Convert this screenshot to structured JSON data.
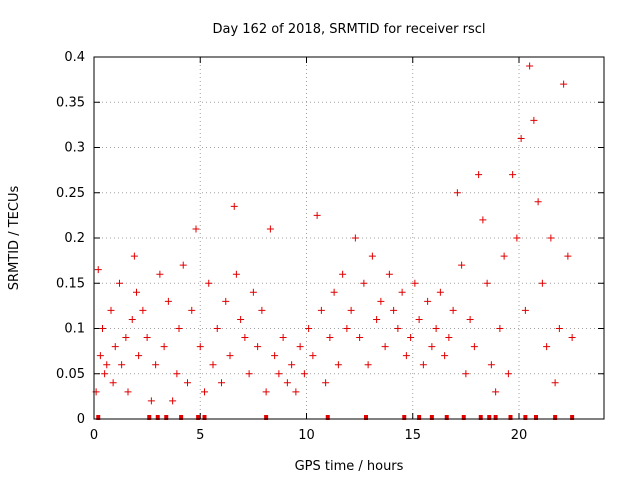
{
  "chart_data": {
    "type": "scatter",
    "title": "Day 162 of 2018, SRMTID for receiver rscl",
    "xlabel": "GPS time / hours",
    "ylabel": "SRMTID / TECUs",
    "xlim": [
      0,
      24
    ],
    "ylim": [
      0,
      0.4
    ],
    "xticks": [
      0,
      5,
      10,
      15,
      20
    ],
    "yticks": [
      0,
      0.05,
      0.1,
      0.15,
      0.2,
      0.25,
      0.3,
      0.35,
      0.4
    ],
    "xtick_labels": [
      "0",
      "5",
      "10",
      "15",
      "20"
    ],
    "ytick_labels": [
      "0",
      "0.05",
      "0.1",
      "0.15",
      "0.2",
      "0.25",
      "0.3",
      "0.35",
      "0.4"
    ],
    "grid": true,
    "marker": "+",
    "color": "#e00000",
    "series": [
      {
        "name": "SRMTID",
        "x": [
          0.1,
          0.2,
          0.3,
          0.4,
          0.5,
          0.6,
          0.8,
          0.9,
          1.0,
          1.2,
          1.3,
          1.5,
          1.6,
          1.8,
          1.9,
          2.0,
          2.1,
          2.3,
          2.5,
          2.7,
          2.9,
          3.1,
          3.3,
          3.5,
          3.7,
          3.9,
          4.0,
          4.2,
          4.4,
          4.6,
          4.8,
          5.0,
          5.2,
          5.4,
          5.6,
          5.8,
          6.0,
          6.2,
          6.4,
          6.6,
          6.7,
          6.9,
          7.1,
          7.3,
          7.5,
          7.7,
          7.9,
          8.1,
          8.3,
          8.5,
          8.7,
          8.9,
          9.1,
          9.3,
          9.5,
          9.7,
          9.9,
          10.1,
          10.3,
          10.5,
          10.7,
          10.9,
          11.1,
          11.3,
          11.5,
          11.7,
          11.9,
          12.1,
          12.3,
          12.5,
          12.7,
          12.9,
          13.1,
          13.3,
          13.5,
          13.7,
          13.9,
          14.1,
          14.3,
          14.5,
          14.7,
          14.9,
          15.1,
          15.3,
          15.5,
          15.7,
          15.9,
          16.1,
          16.3,
          16.5,
          16.7,
          16.9,
          17.1,
          17.3,
          17.5,
          17.7,
          17.9,
          18.1,
          18.3,
          18.5,
          18.7,
          18.9,
          19.1,
          19.3,
          19.5,
          19.7,
          19.9,
          20.1,
          20.3,
          20.5,
          20.7,
          20.9,
          21.1,
          21.3,
          21.5,
          21.7,
          21.9,
          22.1,
          22.3,
          22.5
        ],
        "y": [
          0.03,
          0.165,
          0.07,
          0.1,
          0.05,
          0.06,
          0.12,
          0.04,
          0.08,
          0.15,
          0.06,
          0.09,
          0.03,
          0.11,
          0.18,
          0.14,
          0.07,
          0.12,
          0.09,
          0.02,
          0.06,
          0.16,
          0.08,
          0.13,
          0.02,
          0.05,
          0.1,
          0.17,
          0.04,
          0.12,
          0.21,
          0.08,
          0.03,
          0.15,
          0.06,
          0.1,
          0.04,
          0.13,
          0.07,
          0.235,
          0.16,
          0.11,
          0.09,
          0.05,
          0.14,
          0.08,
          0.12,
          0.03,
          0.21,
          0.07,
          0.05,
          0.09,
          0.04,
          0.06,
          0.03,
          0.08,
          0.05,
          0.1,
          0.07,
          0.225,
          0.12,
          0.04,
          0.09,
          0.14,
          0.06,
          0.16,
          0.1,
          0.12,
          0.2,
          0.09,
          0.15,
          0.06,
          0.18,
          0.11,
          0.13,
          0.08,
          0.16,
          0.12,
          0.1,
          0.14,
          0.07,
          0.09,
          0.15,
          0.11,
          0.06,
          0.13,
          0.08,
          0.1,
          0.14,
          0.07,
          0.09,
          0.12,
          0.25,
          0.17,
          0.05,
          0.11,
          0.08,
          0.27,
          0.22,
          0.15,
          0.06,
          0.03,
          0.1,
          0.18,
          0.05,
          0.27,
          0.2,
          0.31,
          0.12,
          0.39,
          0.33,
          0.24,
          0.15,
          0.08,
          0.2,
          0.04,
          0.1,
          0.37,
          0.18,
          0.09
        ]
      }
    ],
    "bottom_markers_x": [
      0.2,
      2.6,
      3.0,
      3.4,
      4.1,
      4.9,
      5.2,
      8.1,
      11.0,
      12.8,
      14.6,
      15.3,
      15.9,
      16.6,
      17.4,
      18.2,
      18.6,
      18.9,
      19.6,
      20.3,
      20.8,
      21.7,
      22.5
    ]
  }
}
